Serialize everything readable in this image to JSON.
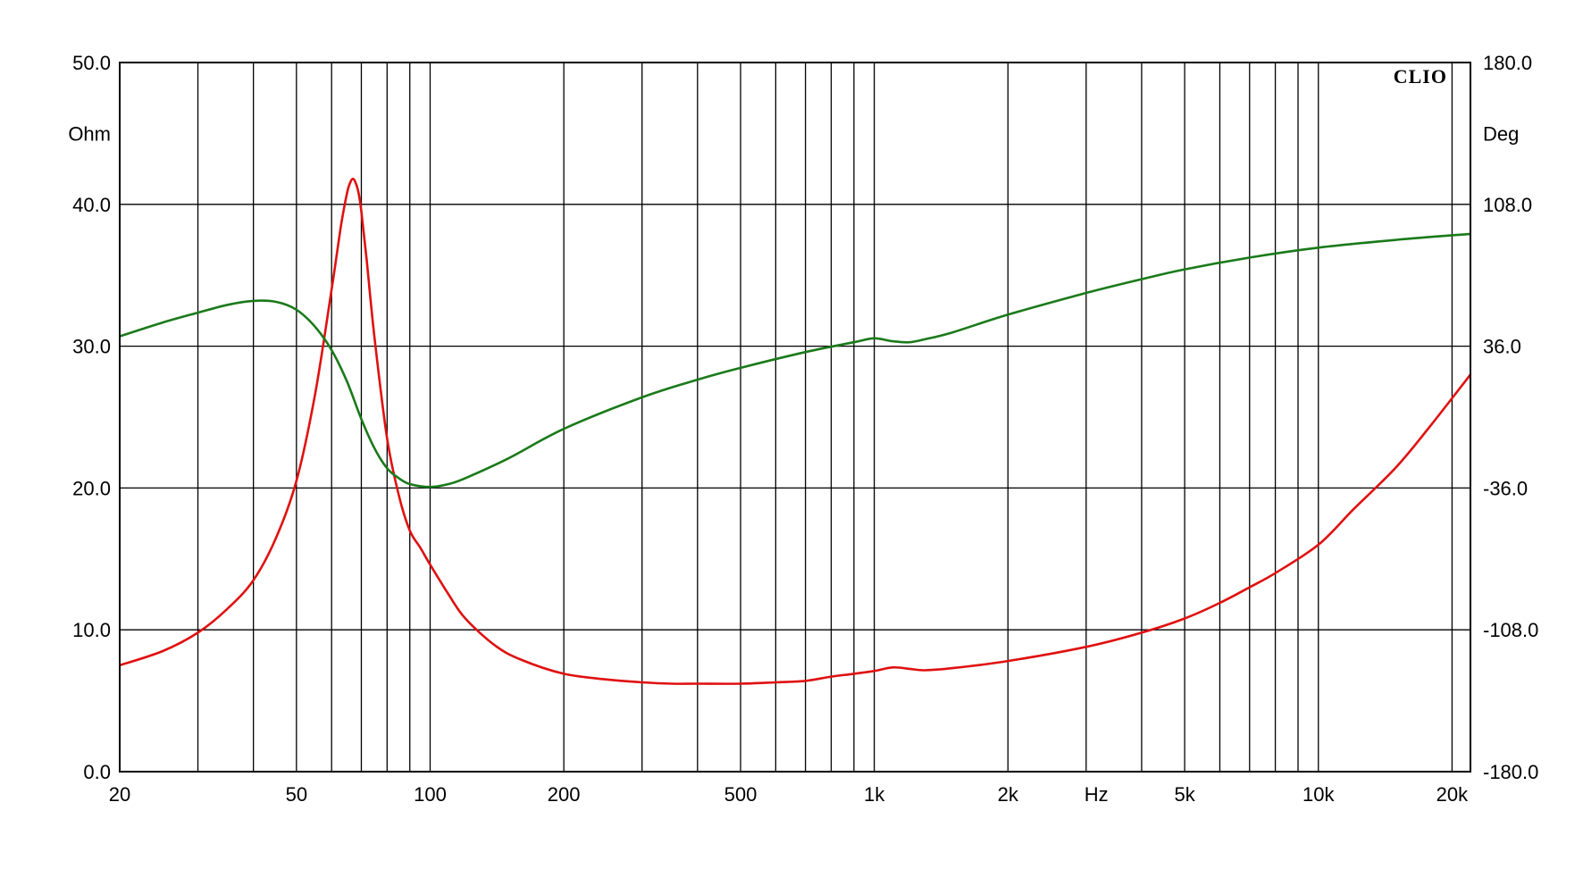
{
  "chart_data": {
    "type": "line",
    "brand": "CLIO",
    "x_scale": "log",
    "xlim": [
      20,
      22000
    ],
    "x_unit_label": "Hz",
    "x_ticks": [
      {
        "value": 20,
        "label": "20"
      },
      {
        "value": 50,
        "label": "50"
      },
      {
        "value": 100,
        "label": "100"
      },
      {
        "value": 200,
        "label": "200"
      },
      {
        "value": 500,
        "label": "500"
      },
      {
        "value": 1000,
        "label": "1k"
      },
      {
        "value": 2000,
        "label": "2k"
      },
      {
        "value": 5000,
        "label": "5k"
      },
      {
        "value": 10000,
        "label": "10k"
      },
      {
        "value": 20000,
        "label": "20k"
      }
    ],
    "x_gridlines": [
      20,
      30,
      40,
      50,
      60,
      70,
      80,
      90,
      100,
      200,
      300,
      400,
      500,
      600,
      700,
      800,
      900,
      1000,
      2000,
      3000,
      4000,
      5000,
      6000,
      7000,
      8000,
      9000,
      10000,
      20000
    ],
    "y_left": {
      "unit": "Ohm",
      "lim": [
        0,
        50
      ],
      "ticks": [
        "0.0",
        "10.0",
        "20.0",
        "30.0",
        "40.0",
        "50.0"
      ],
      "tick_values": [
        0,
        10,
        20,
        30,
        40,
        50
      ]
    },
    "y_right": {
      "unit": "Deg",
      "lim": [
        -180,
        180
      ],
      "ticks": [
        "-180.0",
        "-108.0",
        "-36.0",
        "36.0",
        "108.0",
        "180.0"
      ],
      "tick_values": [
        -180,
        -108,
        -36,
        36,
        108,
        180
      ]
    },
    "grid": true,
    "series": [
      {
        "axis": "left",
        "color": "#e01010",
        "x": [
          20,
          25,
          30,
          35,
          40,
          45,
          50,
          55,
          60,
          63,
          65,
          66,
          67,
          68,
          69,
          70,
          72,
          75,
          80,
          85,
          90,
          95,
          100,
          110,
          120,
          140,
          160,
          200,
          250,
          300,
          350,
          400,
          500,
          600,
          700,
          800,
          900,
          1000,
          1100,
          1200,
          1300,
          1500,
          2000,
          3000,
          4000,
          5000,
          6000,
          7000,
          8000,
          10000,
          12000,
          15000,
          18000,
          22000
        ],
        "y": [
          7.5,
          8.5,
          9.8,
          11.5,
          13.5,
          16.5,
          20.5,
          26.5,
          34,
          38.5,
          40.8,
          41.5,
          41.8,
          41.5,
          40.8,
          39.5,
          36,
          30.5,
          23.5,
          19.5,
          17,
          15.8,
          14.6,
          12.5,
          10.8,
          8.9,
          7.9,
          6.9,
          6.5,
          6.3,
          6.2,
          6.2,
          6.2,
          6.3,
          6.4,
          6.7,
          6.9,
          7.1,
          7.35,
          7.25,
          7.15,
          7.3,
          7.8,
          8.8,
          9.8,
          10.8,
          11.9,
          13,
          14,
          16,
          18.5,
          21.5,
          24.5,
          28
        ]
      },
      {
        "axis": "right",
        "color": "#1a7a1a",
        "x": [
          20,
          25,
          30,
          35,
          40,
          45,
          50,
          55,
          60,
          65,
          70,
          75,
          80,
          85,
          90,
          100,
          110,
          120,
          150,
          200,
          300,
          400,
          500,
          700,
          900,
          1000,
          1100,
          1200,
          1300,
          1500,
          2000,
          3000,
          4000,
          5000,
          7000,
          10000,
          15000,
          22000
        ],
        "y": [
          41,
          48,
          53,
          57,
          59,
          58.5,
          54.5,
          46,
          34,
          18,
          -1,
          -16,
          -26,
          -31,
          -34,
          -35.5,
          -34,
          -31,
          -21,
          -6,
          10,
          19,
          25,
          33,
          38,
          40,
          38.5,
          38,
          39.5,
          43,
          52,
          63,
          70,
          75,
          81,
          86,
          90,
          93
        ]
      }
    ]
  }
}
